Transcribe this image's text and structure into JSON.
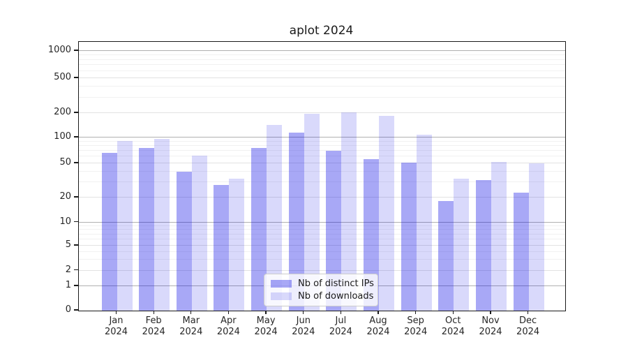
{
  "chart_data": {
    "type": "bar",
    "title": "aplot 2024",
    "categories": [
      "Jan 2024",
      "Feb 2024",
      "Mar 2024",
      "Apr 2024",
      "May 2024",
      "Jun 2024",
      "Jul 2024",
      "Aug 2024",
      "Sep 2024",
      "Oct 2024",
      "Nov 2024",
      "Dec 2024"
    ],
    "series": [
      {
        "name": "Nb of distinct IPs",
        "color": "rgba(0,0,230,0.34)",
        "hex_on_white": "#a8a8f7",
        "values": [
          66,
          75,
          40,
          28,
          76,
          114,
          70,
          56,
          51,
          18,
          32,
          23
        ]
      },
      {
        "name": "Nb of downloads",
        "color": "rgba(0,0,230,0.15)",
        "hex_on_white": "#d9d9fb",
        "values": [
          91,
          97,
          61,
          33,
          143,
          196,
          205,
          185,
          109,
          33,
          52,
          50
        ]
      }
    ],
    "xlabel": "",
    "ylabel": "",
    "yscale": "symlog",
    "yticks": [
      0,
      1,
      2,
      5,
      10,
      20,
      50,
      100,
      200,
      500,
      1000
    ],
    "ylim": [
      0,
      1285
    ],
    "grid": true,
    "legend_position": "lower center"
  }
}
